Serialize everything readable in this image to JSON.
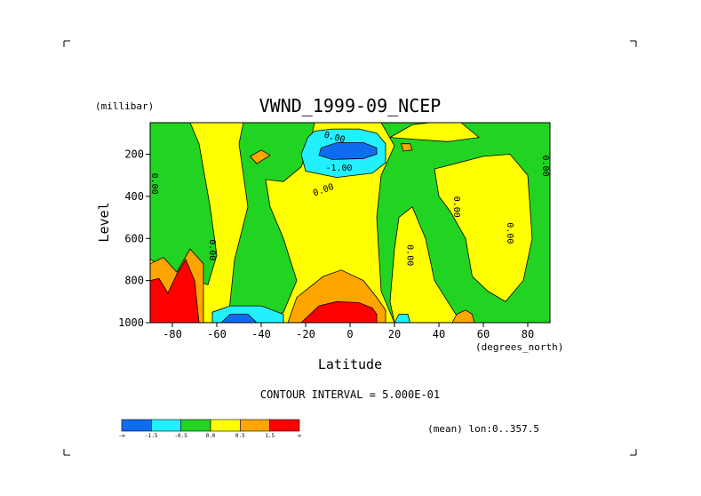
{
  "chart_data": {
    "type": "heatmap",
    "title": "VWND_1999-09_NCEP",
    "xlabel": "Latitude",
    "x_unit": "(degrees_north)",
    "ylabel": "Level",
    "y_unit": "(millibar)",
    "xlim": [
      -90,
      90
    ],
    "ylim": [
      1000,
      50
    ],
    "y_inverted": true,
    "x_ticks": [
      -80,
      -60,
      -40,
      -20,
      0,
      20,
      40,
      60,
      80
    ],
    "y_ticks": [
      200,
      400,
      600,
      800,
      1000
    ],
    "contour_interval_label": "CONTOUR INTERVAL = 5.000E-01",
    "subset_label": "(mean) lon:0..357.5",
    "colorbar": {
      "colors": [
        "#0f6cf0",
        "#22f0ff",
        "#22d422",
        "#ffff00",
        "#ffa500",
        "#ff0000"
      ],
      "labels": [
        "-∞",
        "-1.5",
        "-0.5",
        "0.0",
        "0.5",
        "1.5",
        "∞"
      ]
    },
    "contour_labels": [
      {
        "text": "0.00",
        "lat": -7,
        "level": 120,
        "rotate": 15
      },
      {
        "text": "-1.00",
        "lat": -5,
        "level": 265,
        "rotate": 0
      },
      {
        "text": "0.00",
        "lat": -12,
        "level": 370,
        "rotate": -20
      },
      {
        "text": "0.00",
        "lat": -88,
        "level": 340,
        "rotate": 90
      },
      {
        "text": "0.00",
        "lat": -62,
        "level": 655,
        "rotate": 90
      },
      {
        "text": "0.00",
        "lat": 27,
        "level": 680,
        "rotate": 90
      },
      {
        "text": "0.00",
        "lat": 48,
        "level": 450,
        "rotate": 90
      },
      {
        "text": "0.00",
        "lat": 72,
        "level": 575,
        "rotate": 90
      },
      {
        "text": "0.00",
        "lat": 88,
        "level": 255,
        "rotate": 90
      }
    ],
    "regions": [
      {
        "fill": "#ffff00",
        "points": [
          [
            -90,
            1000
          ],
          [
            -90,
            50
          ],
          [
            90,
            50
          ],
          [
            90,
            1000
          ]
        ]
      },
      {
        "fill": "#22d422",
        "points": [
          [
            -90,
            50
          ],
          [
            -72,
            50
          ],
          [
            -68,
            150
          ],
          [
            -63,
            450
          ],
          [
            -60,
            680
          ],
          [
            -64,
            820
          ],
          [
            -72,
            790
          ],
          [
            -90,
            700
          ]
        ]
      },
      {
        "fill": "#22d422",
        "points": [
          [
            -48,
            50
          ],
          [
            -16,
            50
          ],
          [
            -18,
            150
          ],
          [
            -22,
            260
          ],
          [
            -30,
            330
          ],
          [
            -38,
            320
          ],
          [
            -36,
            450
          ],
          [
            -30,
            600
          ],
          [
            -24,
            800
          ],
          [
            -30,
            950
          ],
          [
            -40,
            1000
          ],
          [
            -55,
            1000
          ],
          [
            -52,
            700
          ],
          [
            -46,
            450
          ],
          [
            -50,
            150
          ]
        ]
      },
      {
        "fill": "#22d422",
        "points": [
          [
            14,
            50
          ],
          [
            90,
            50
          ],
          [
            90,
            1000
          ],
          [
            50,
            1000
          ],
          [
            38,
            800
          ],
          [
            34,
            600
          ],
          [
            28,
            450
          ],
          [
            22,
            500
          ],
          [
            20,
            650
          ],
          [
            18,
            900
          ],
          [
            20,
            1000
          ],
          [
            14,
            850
          ],
          [
            12,
            500
          ],
          [
            14,
            300
          ],
          [
            20,
            160
          ]
        ]
      },
      {
        "fill": "#ffff00",
        "points": [
          [
            38,
            270
          ],
          [
            60,
            210
          ],
          [
            72,
            200
          ],
          [
            80,
            300
          ],
          [
            82,
            600
          ],
          [
            78,
            800
          ],
          [
            70,
            900
          ],
          [
            62,
            850
          ],
          [
            55,
            780
          ],
          [
            52,
            600
          ],
          [
            45,
            470
          ],
          [
            40,
            400
          ]
        ]
      },
      {
        "fill": "#ffff00",
        "points": [
          [
            18,
            120
          ],
          [
            28,
            60
          ],
          [
            36,
            50
          ],
          [
            50,
            50
          ],
          [
            58,
            120
          ],
          [
            44,
            140
          ],
          [
            30,
            130
          ]
        ]
      },
      {
        "fill": "#ffa500",
        "points": [
          [
            -45,
            210
          ],
          [
            -40,
            180
          ],
          [
            -36,
            205
          ],
          [
            -42,
            245
          ]
        ]
      },
      {
        "fill": "#ffa500",
        "points": [
          [
            23,
            150
          ],
          [
            27,
            150
          ],
          [
            28,
            180
          ],
          [
            24,
            185
          ]
        ]
      },
      {
        "fill": "#ffa500",
        "points": [
          [
            -90,
            720
          ],
          [
            -84,
            690
          ],
          [
            -78,
            760
          ],
          [
            -72,
            650
          ],
          [
            -66,
            720
          ],
          [
            -66,
            1000
          ],
          [
            -90,
            1000
          ]
        ]
      },
      {
        "fill": "#ff0000",
        "points": [
          [
            -90,
            800
          ],
          [
            -86,
            790
          ],
          [
            -82,
            860
          ],
          [
            -78,
            770
          ],
          [
            -74,
            700
          ],
          [
            -70,
            800
          ],
          [
            -68,
            1000
          ],
          [
            -90,
            1000
          ]
        ]
      },
      {
        "fill": "#ffa500",
        "points": [
          [
            -28,
            1000
          ],
          [
            -24,
            880
          ],
          [
            -12,
            780
          ],
          [
            -4,
            750
          ],
          [
            6,
            800
          ],
          [
            12,
            880
          ],
          [
            16,
            940
          ],
          [
            16,
            1000
          ]
        ]
      },
      {
        "fill": "#ff0000",
        "points": [
          [
            -22,
            1000
          ],
          [
            -14,
            920
          ],
          [
            -6,
            900
          ],
          [
            4,
            905
          ],
          [
            10,
            930
          ],
          [
            12,
            960
          ],
          [
            12,
            1000
          ]
        ]
      },
      {
        "fill": "#ffa500",
        "points": [
          [
            46,
            1000
          ],
          [
            48,
            960
          ],
          [
            52,
            940
          ],
          [
            55,
            960
          ],
          [
            56,
            1000
          ]
        ]
      },
      {
        "fill": "#22f0ff",
        "points": [
          [
            -19,
            120
          ],
          [
            -16,
            90
          ],
          [
            -8,
            80
          ],
          [
            4,
            80
          ],
          [
            12,
            100
          ],
          [
            16,
            150
          ],
          [
            16,
            240
          ],
          [
            10,
            290
          ],
          [
            -6,
            310
          ],
          [
            -20,
            280
          ],
          [
            -22,
            200
          ]
        ]
      },
      {
        "fill": "#0f6cf0",
        "points": [
          [
            -13,
            170
          ],
          [
            -6,
            145
          ],
          [
            6,
            145
          ],
          [
            12,
            170
          ],
          [
            12,
            200
          ],
          [
            6,
            220
          ],
          [
            -8,
            225
          ],
          [
            -14,
            205
          ]
        ]
      },
      {
        "fill": "#22f0ff",
        "points": [
          [
            -62,
            1000
          ],
          [
            -62,
            950
          ],
          [
            -54,
            920
          ],
          [
            -40,
            920
          ],
          [
            -30,
            960
          ],
          [
            -30,
            1000
          ]
        ]
      },
      {
        "fill": "#0f6cf0",
        "points": [
          [
            -58,
            1000
          ],
          [
            -54,
            960
          ],
          [
            -46,
            960
          ],
          [
            -42,
            1000
          ]
        ]
      },
      {
        "fill": "#22f0ff",
        "points": [
          [
            20,
            1000
          ],
          [
            22,
            960
          ],
          [
            26,
            960
          ],
          [
            27,
            1000
          ]
        ]
      }
    ]
  }
}
